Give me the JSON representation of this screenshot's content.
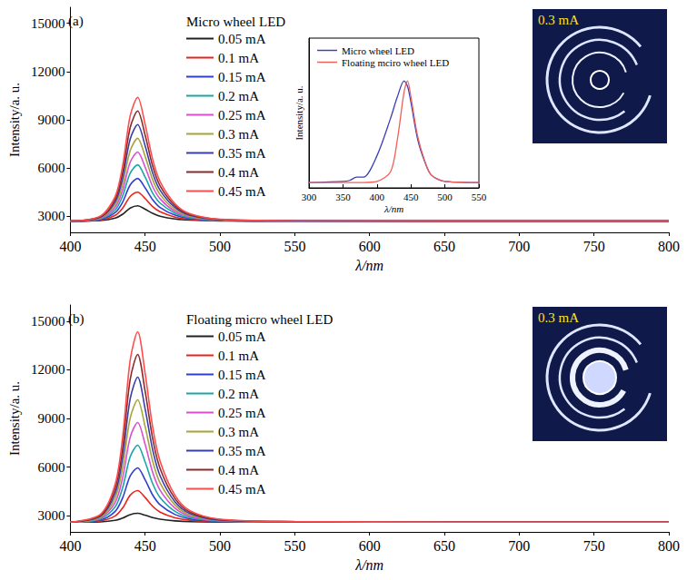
{
  "chart_data": [
    {
      "type": "line",
      "panel": "(a)",
      "title": "Micro wheel LED",
      "x_label": "λ/nm",
      "y_label": "Intensity/a. u.",
      "x": [
        400,
        420,
        430,
        435,
        440,
        445,
        450,
        455,
        460,
        470,
        480,
        500,
        550,
        650,
        800
      ],
      "xlim": [
        400,
        800
      ],
      "xticks": [
        400,
        450,
        500,
        550,
        600,
        650,
        700,
        750,
        800
      ],
      "ylim": [
        2000,
        16000
      ],
      "yticks": [
        3000,
        6000,
        9000,
        12000,
        15000
      ],
      "legend": "upper left",
      "annotations": [
        "0.3 mA"
      ],
      "series": [
        {
          "name": "0.05 mA",
          "color": "#222222",
          "values": [
            2700,
            2740,
            2890,
            3130,
            3510,
            3650,
            3440,
            3180,
            3000,
            2830,
            2760,
            2710,
            2700,
            2700,
            2700
          ]
        },
        {
          "name": "0.1 mA",
          "color": "#e8231c",
          "values": [
            2700,
            2770,
            3060,
            3510,
            4230,
            4500,
            4100,
            3600,
            3280,
            2950,
            2810,
            2730,
            2710,
            2700,
            2700
          ]
        },
        {
          "name": "0.15 mA",
          "color": "#2f3fd0",
          "values": [
            2700,
            2810,
            3230,
            3890,
            4950,
            5350,
            4770,
            4030,
            3550,
            3070,
            2860,
            2740,
            2710,
            2700,
            2700
          ]
        },
        {
          "name": "0.2 mA",
          "color": "#1aa6a6",
          "values": [
            2700,
            2840,
            3400,
            4280,
            5680,
            6200,
            5430,
            4450,
            3820,
            3190,
            2910,
            2750,
            2710,
            2700,
            2700
          ]
        },
        {
          "name": "0.25 mA",
          "color": "#d94fd0",
          "values": [
            2700,
            2870,
            3560,
            4640,
            6360,
            7000,
            6050,
            4850,
            4080,
            3300,
            2960,
            2770,
            2710,
            2700,
            2700
          ]
        },
        {
          "name": "0.3 mA",
          "color": "#a8a33a",
          "values": [
            2700,
            2910,
            3730,
            5020,
            7080,
            7850,
            6720,
            5280,
            4350,
            3420,
            3010,
            2780,
            2720,
            2700,
            2700
          ]
        },
        {
          "name": "0.35 mA",
          "color": "#3a3fa8",
          "values": [
            2700,
            2940,
            3900,
            5400,
            7800,
            8700,
            7380,
            5700,
            4620,
            3540,
            3060,
            2790,
            2720,
            2700,
            2700
          ]
        },
        {
          "name": "0.4 mA",
          "color": "#8a2a2a",
          "values": [
            2700,
            2970,
            4070,
            5780,
            8520,
            9550,
            8040,
            6130,
            4890,
            3660,
            3110,
            2800,
            2720,
            2700,
            2700
          ]
        },
        {
          "name": "0.45 mA",
          "color": "#ff4d4d",
          "values": [
            2700,
            3010,
            4240,
            6170,
            9250,
            10400,
            8710,
            6550,
            5160,
            3780,
            3160,
            2820,
            2720,
            2700,
            2700
          ]
        }
      ]
    },
    {
      "type": "line",
      "x_label": "λ/nm",
      "y_label": "Intensity/a. u.",
      "x": [
        300,
        350,
        360,
        370,
        380,
        400,
        420,
        430,
        440,
        445,
        450,
        460,
        470,
        480,
        500,
        550
      ],
      "xlim": [
        300,
        550
      ],
      "xticks": [
        300,
        350,
        400,
        450,
        500,
        550
      ],
      "ylim": [
        0,
        1.4
      ],
      "tick_labels": "x",
      "legend": "upper left",
      "series": [
        {
          "name": "Micro wheel LED",
          "color": "#3b3fb8",
          "values": [
            0.05,
            0.06,
            0.07,
            0.1,
            0.1,
            0.3,
            0.65,
            0.85,
            1.0,
            0.95,
            0.8,
            0.45,
            0.25,
            0.12,
            0.06,
            0.05
          ]
        },
        {
          "name": "Floating mciro wheel LED",
          "color": "#f0605a",
          "values": [
            0.05,
            0.05,
            0.05,
            0.05,
            0.05,
            0.06,
            0.15,
            0.45,
            0.9,
            1.0,
            0.85,
            0.48,
            0.26,
            0.12,
            0.06,
            0.05
          ]
        }
      ]
    },
    {
      "type": "line",
      "panel": "(b)",
      "title": "Floating micro wheel LED",
      "x_label": "λ/nm",
      "y_label": "Intensity/a. u.",
      "x": [
        400,
        420,
        430,
        435,
        440,
        445,
        450,
        455,
        460,
        470,
        480,
        500,
        550,
        650,
        800
      ],
      "xlim": [
        400,
        800
      ],
      "xticks": [
        400,
        450,
        500,
        550,
        600,
        650,
        700,
        750,
        800
      ],
      "ylim": [
        2000,
        16000
      ],
      "yticks": [
        3000,
        6000,
        9000,
        12000,
        15000
      ],
      "legend": "upper left",
      "annotations": [
        "0.3 mA"
      ],
      "series": [
        {
          "name": "0.05 mA",
          "color": "#222222",
          "values": [
            2600,
            2620,
            2710,
            2850,
            3070,
            3150,
            3030,
            2880,
            2780,
            2680,
            2630,
            2610,
            2600,
            2600,
            2600
          ]
        },
        {
          "name": "0.1 mA",
          "color": "#e8231c",
          "values": [
            2600,
            2680,
            2990,
            3480,
            4260,
            4550,
            4120,
            3580,
            3220,
            2870,
            2720,
            2630,
            2610,
            2600,
            2600
          ]
        },
        {
          "name": "0.15 mA",
          "color": "#2f3fd0",
          "values": [
            2600,
            2730,
            3270,
            4110,
            5450,
            5950,
            5210,
            4280,
            3670,
            3070,
            2800,
            2650,
            2610,
            2600,
            2600
          ]
        },
        {
          "name": "0.2 mA",
          "color": "#1aa6a6",
          "values": [
            2600,
            2790,
            3550,
            4740,
            6640,
            7350,
            6310,
            4980,
            4120,
            3270,
            2890,
            2670,
            2610,
            2600,
            2600
          ]
        },
        {
          "name": "0.25 mA",
          "color": "#d94fd0",
          "values": [
            2600,
            2850,
            3830,
            5370,
            7830,
            8750,
            7400,
            5680,
            4570,
            3460,
            2970,
            2690,
            2620,
            2600,
            2600
          ]
        },
        {
          "name": "0.3 mA",
          "color": "#a8a33a",
          "values": [
            2600,
            2900,
            4110,
            6000,
            9020,
            10150,
            8490,
            6380,
            5020,
            3660,
            3050,
            2710,
            2620,
            2600,
            2600
          ]
        },
        {
          "name": "0.35 mA",
          "color": "#3a3fa8",
          "values": [
            2600,
            2960,
            4390,
            6630,
            10210,
            11550,
            9580,
            7080,
            5460,
            3850,
            3140,
            2730,
            2630,
            2600,
            2600
          ]
        },
        {
          "name": "0.4 mA",
          "color": "#8a2a2a",
          "values": [
            2600,
            3010,
            4670,
            7260,
            11400,
            12950,
            10670,
            7780,
            5910,
            4050,
            3220,
            2760,
            2630,
            2600,
            2600
          ]
        },
        {
          "name": "0.45 mA",
          "color": "#ff4d4d",
          "values": [
            2600,
            3070,
            4950,
            7890,
            12590,
            14350,
            11770,
            8480,
            6360,
            4250,
            3310,
            2780,
            2640,
            2600,
            2600
          ]
        }
      ]
    }
  ]
}
